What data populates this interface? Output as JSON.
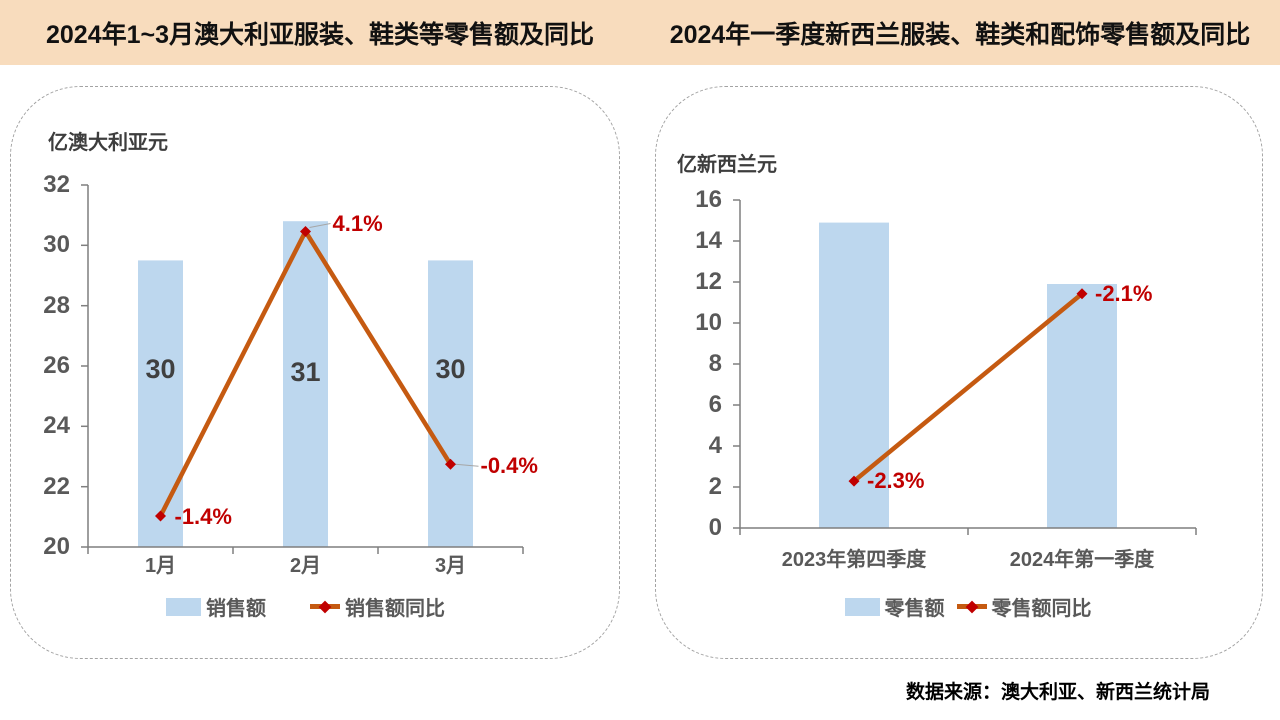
{
  "header": {
    "background": "#F8DCBD"
  },
  "source_note": "数据来源：澳大利亚、新西兰统计局",
  "colors": {
    "bar": "#BDD7EE",
    "line": "#C55A11",
    "marker": "#C00000",
    "point_label": "#C00000",
    "axis": "#7f7f7f",
    "leader": "#a6a6a6",
    "tick_text": "#595959",
    "bar_label_text": "#404040"
  },
  "chart_data": [
    {
      "type": "bar",
      "combo": "bar+line",
      "title": "2024年1~3月澳大利亚服装、鞋类等零售额及同比",
      "unit_label": "亿澳大利亚元",
      "categories": [
        "1月",
        "2月",
        "3月"
      ],
      "series": [
        {
          "name": "销售额",
          "kind": "bar",
          "values": [
            29.5,
            30.8,
            29.5
          ],
          "data_labels": [
            "30",
            "31",
            "30"
          ]
        },
        {
          "name": "销售额同比",
          "kind": "line",
          "unit": "%",
          "values": [
            -1.4,
            4.1,
            -0.4
          ],
          "data_labels": [
            "-1.4%",
            "4.1%",
            "-0.4%"
          ]
        }
      ],
      "bar_ylim": [
        20,
        32
      ],
      "bar_yticks": [
        20,
        22,
        24,
        26,
        28,
        30,
        32
      ],
      "line_ylim": [
        -2,
        5
      ],
      "grid": false,
      "legend_position": "bottom"
    },
    {
      "type": "bar",
      "combo": "bar+line",
      "title": "2024年一季度新西兰服装、鞋类和配饰零售额及同比",
      "unit_label": "亿新西兰元",
      "categories": [
        "2023年第四季度",
        "2024年第一季度"
      ],
      "series": [
        {
          "name": "零售额",
          "kind": "bar",
          "values": [
            14.9,
            11.9
          ],
          "data_labels": [
            "",
            ""
          ]
        },
        {
          "name": "零售额同比",
          "kind": "line",
          "unit": "%",
          "values": [
            -2.3,
            -2.1
          ],
          "data_labels": [
            "-2.3%",
            "-2.1%"
          ]
        }
      ],
      "bar_ylim": [
        0,
        16
      ],
      "bar_yticks": [
        0,
        2,
        4,
        6,
        8,
        10,
        12,
        14,
        16
      ],
      "line_ylim": [
        -2.35,
        -2.0
      ],
      "grid": false,
      "legend_position": "bottom"
    }
  ]
}
